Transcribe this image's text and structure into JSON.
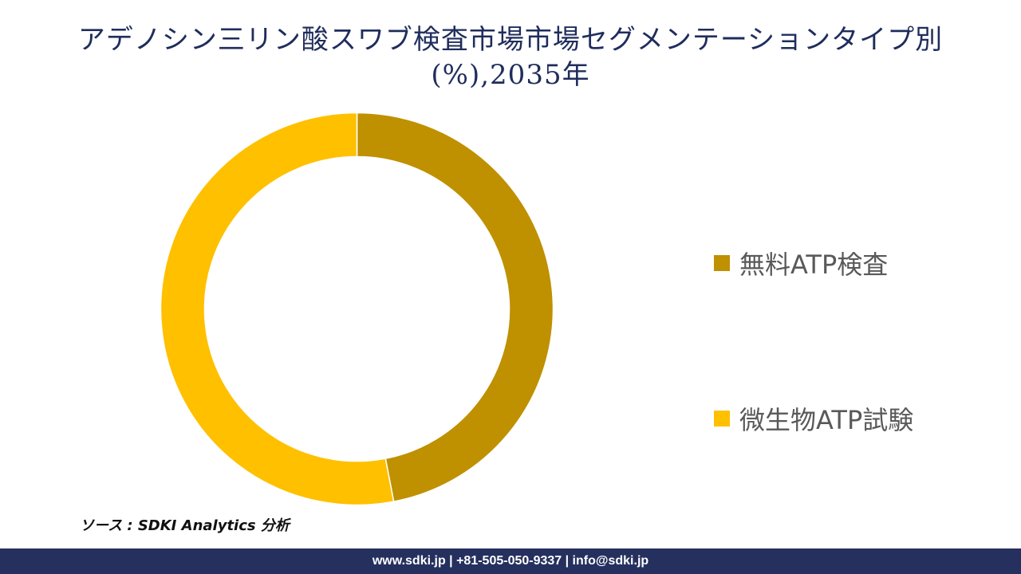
{
  "header": {
    "title_line1": "アデノシン三リン酸スワブ検査市場市場セグメンテーションタイプ別",
    "title_line2": "(%),2035年"
  },
  "chart_data": {
    "type": "pie",
    "donut": true,
    "title": "アデノシン三リン酸スワブ検査市場市場セグメンテーションタイプ別 (%),2035年",
    "categories": [
      "無料ATP検査",
      "微生物ATP試験"
    ],
    "values": [
      47,
      53
    ],
    "colors": [
      "#bf9000",
      "#ffc000"
    ],
    "legend_position": "right"
  },
  "legend": {
    "items": [
      {
        "label": "無料ATP検査",
        "color": "#bf9000"
      },
      {
        "label": "微生物ATP試験",
        "color": "#ffc000"
      }
    ]
  },
  "source": "ソース : SDKI Analytics 分析",
  "footer": "www.sdki.jp | +81-505-050-9337 | info@sdki.jp"
}
